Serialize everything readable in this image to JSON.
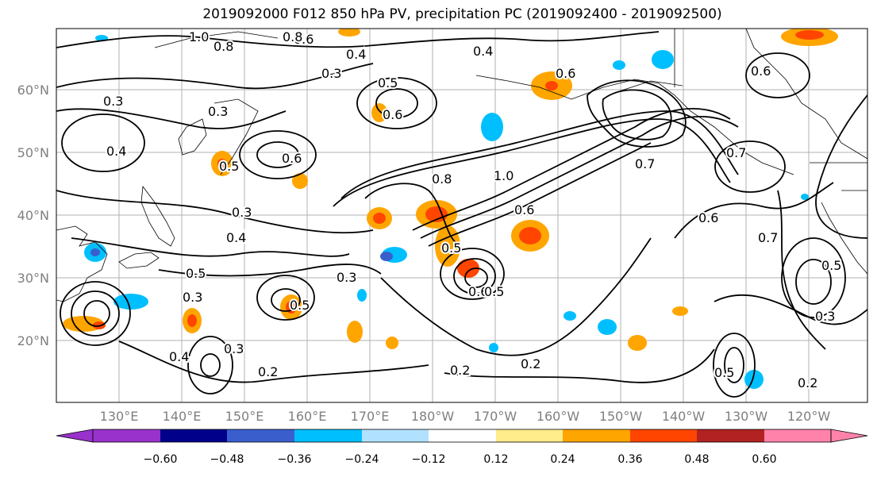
{
  "title": "2019092000 F012 850 hPa PV, precipitation PC (2019092400 - 2019092500)",
  "lat_labels": [
    "60°N",
    "50°N",
    "40°N",
    "30°N",
    "20°N"
  ],
  "lon_labels": [
    "130°E",
    "140°E",
    "150°E",
    "160°E",
    "170°E",
    "180°W",
    "170°W",
    "160°W",
    "150°W",
    "140°W",
    "130°W",
    "120°W"
  ],
  "colorbar": {
    "colors": [
      "#9932cc",
      "#00008b",
      "#3a5fcd",
      "#00bfff",
      "#b0e2ff",
      "#ffffff",
      "#ffec8b",
      "#ffa500",
      "#ff4500",
      "#b22222",
      "#ff82ab"
    ],
    "tick_labels": [
      "−0.60",
      "−0.48",
      "−0.36",
      "−0.24",
      "−0.12",
      "0.12",
      "0.24",
      "0.36",
      "0.48",
      "0.60"
    ]
  },
  "contour_labels": [
    "0.3",
    "0.5",
    "0.3",
    "0.4",
    "0.5",
    "0.3",
    "0.2",
    "0.3",
    "0.2",
    "0.2",
    "0.8",
    "1.0",
    "0.6",
    "0.5",
    "0.8",
    "0.6",
    "0.4",
    "0.3",
    "0.5",
    "0.6",
    "0.6",
    "0.7",
    "0.6",
    "0.7",
    "0.7",
    "0.5",
    "0.3",
    "0.2",
    "0.6",
    "0.4",
    "0.3",
    "0.3",
    "0.5",
    "0.5",
    "0.6",
    "1.0",
    "0.8",
    "0.6",
    "0.5",
    "0.4",
    "0.4"
  ]
}
